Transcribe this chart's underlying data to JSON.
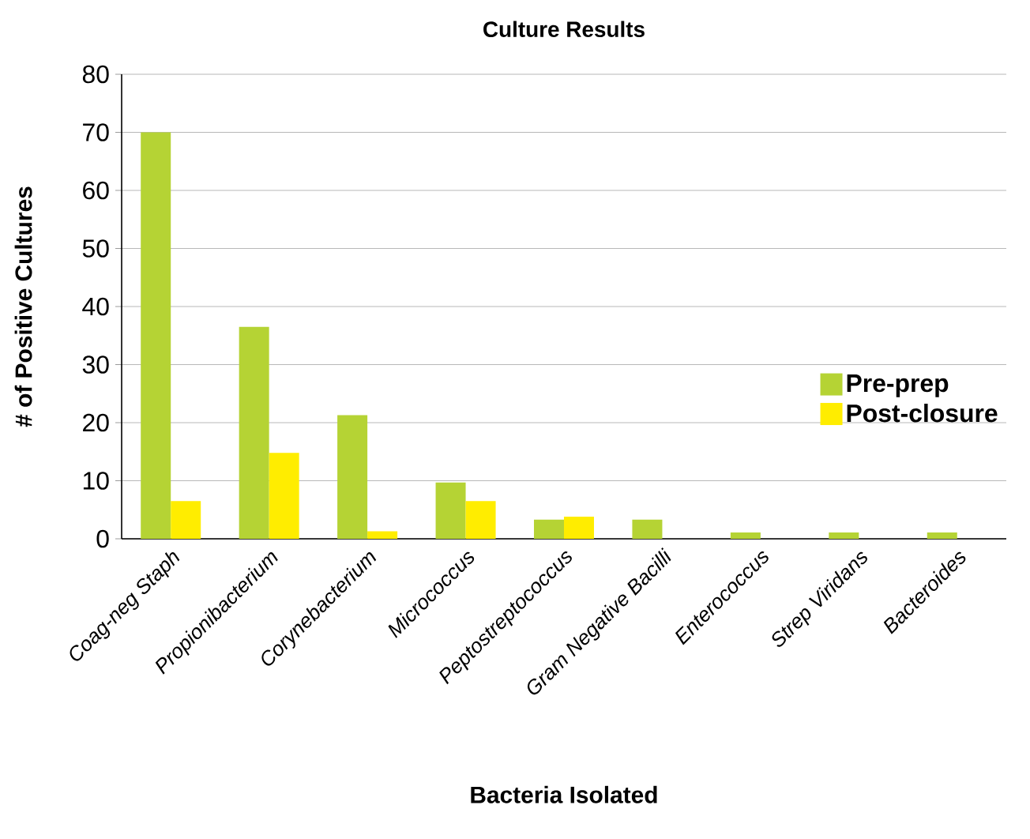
{
  "chart_data": {
    "type": "bar",
    "title": "Culture Results",
    "xlabel": "Bacteria Isolated",
    "ylabel": "# of Positive Cultures",
    "categories": [
      "Coag-neg Staph",
      "Propionibacterium",
      "Corynebacterium",
      "Micrococcus",
      "Peptostreptococcus",
      "Gram Negative Bacilli",
      "Enterococcus",
      "Strep Viridans",
      "Bacteroides"
    ],
    "series": [
      {
        "name": "Pre-prep",
        "color": "#b5d334",
        "values": [
          70,
          36.5,
          21.3,
          9.7,
          3.3,
          3.3,
          1.1,
          1.1,
          1.1
        ]
      },
      {
        "name": "Post-closure",
        "color": "#ffed00",
        "values": [
          6.5,
          14.8,
          1.3,
          6.5,
          3.8,
          0,
          0,
          0,
          0
        ]
      }
    ],
    "ylim": [
      0,
      80
    ],
    "yticks": [
      0,
      10,
      20,
      30,
      40,
      50,
      60,
      70,
      80
    ],
    "grid": "y",
    "legend": "right"
  }
}
